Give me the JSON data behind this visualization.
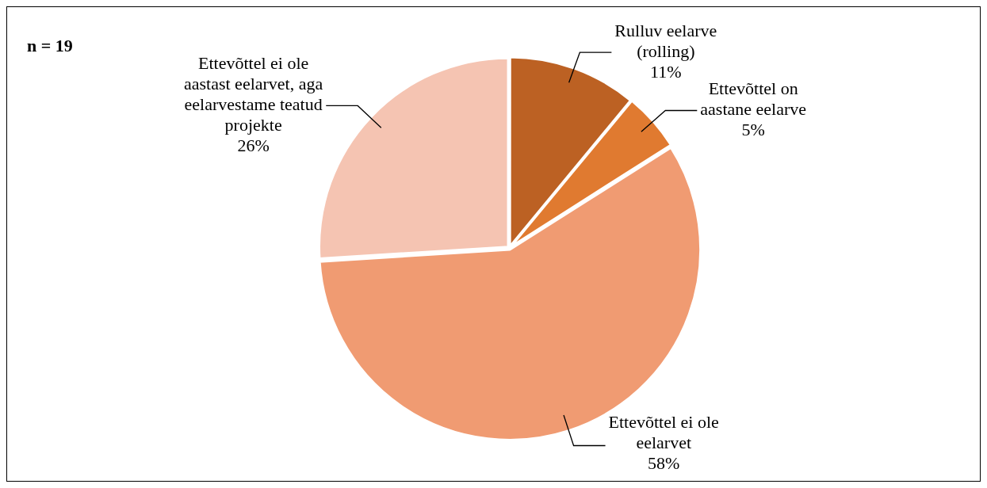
{
  "chart_data": {
    "type": "pie",
    "categories": [
      "Rulluv eelarve (rolling)",
      "Ettevõttel on aastane eelarve",
      "Ettevõttel ei ole eelarvet",
      "Ettevõttel ei ole aastast eelarvet, aga eelarvestame teatud projekte"
    ],
    "values": [
      11,
      5,
      58,
      26
    ],
    "value_labels": [
      "11%",
      "5%",
      "58%",
      "26%"
    ],
    "colors": [
      "#bc6123",
      "#e07a30",
      "#f09b72",
      "#f5c4b2"
    ],
    "annotations": [
      "n = 19"
    ],
    "legend": false
  }
}
